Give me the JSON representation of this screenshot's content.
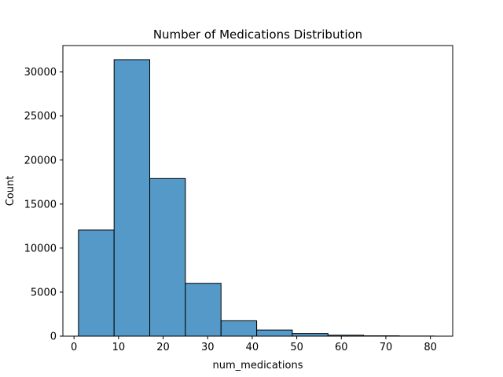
{
  "chart_data": {
    "type": "bar",
    "title": "Number of Medications Distribution",
    "xlabel": "num_medications",
    "ylabel": "Count",
    "bin_edges": [
      1,
      9,
      17,
      25,
      33,
      41,
      49,
      57,
      65,
      73,
      81
    ],
    "values": [
      12050,
      31400,
      17900,
      6000,
      1750,
      700,
      300,
      110,
      40,
      15
    ],
    "xlim": [
      -2.5,
      85
    ],
    "ylim": [
      0,
      33000
    ],
    "xticks": [
      0,
      10,
      20,
      30,
      40,
      50,
      60,
      70,
      80
    ],
    "yticks": [
      0,
      5000,
      10000,
      15000,
      20000,
      25000,
      30000
    ],
    "grid": false,
    "legend": "none",
    "bar_color": "#5499c7",
    "edge_color": "#000000"
  }
}
